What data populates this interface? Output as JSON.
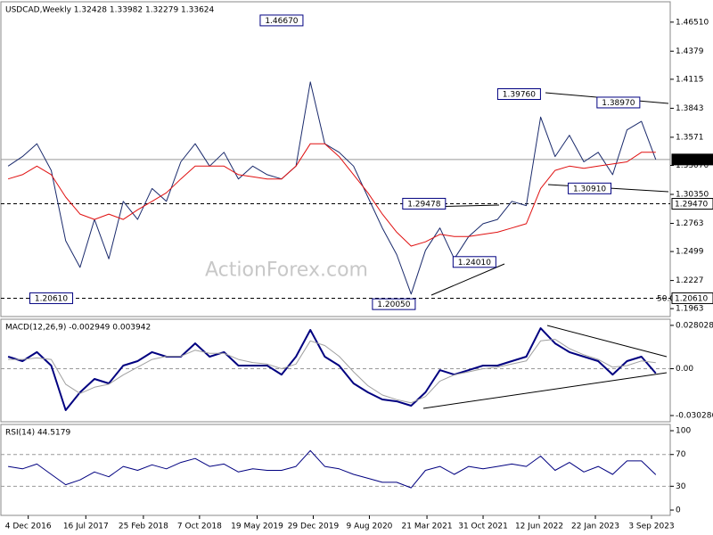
{
  "chart_data": [
    {
      "type": "line",
      "title": "USDCAD,Weekly  1.32428 1.33982 1.32279 1.33624",
      "watermark": "ActionForex.com",
      "fib_label": "50.0",
      "x": [
        0,
        1,
        2,
        3,
        4,
        5,
        6,
        7,
        8,
        9,
        10,
        11,
        12,
        13,
        14,
        15,
        16,
        17,
        18,
        19,
        20,
        21,
        22,
        23,
        24,
        25,
        26,
        27,
        28,
        29,
        30,
        31,
        32,
        33,
        34,
        35,
        36,
        37,
        38,
        39,
        40,
        41,
        42,
        43,
        44,
        45
      ],
      "xlim": [
        -0.5,
        46
      ],
      "ylim": [
        1.1889,
        1.4842
      ],
      "yticks": [
        {
          "value": 1.4651,
          "label": "1.46510"
        },
        1.4379,
        1.4115,
        1.3843,
        1.3571,
        {
          "value": 1.3307,
          "label": "1.33070"
        },
        {
          "value": 1.3035,
          "label": "1.30350"
        },
        1.2763,
        1.2499,
        1.2227,
        1.1963
      ],
      "hlines": [
        {
          "value": 1.33624,
          "label": "1.33624",
          "line": "solid",
          "fill": "#000000"
        },
        {
          "value": 1.2947,
          "label": "1.29470",
          "line": "dashed",
          "fill": "#ffffff"
        },
        {
          "value": 1.2061,
          "label": "1.20610",
          "line": "dashed",
          "fill": "#ffffff"
        }
      ],
      "annotations": [
        {
          "x": 19.0,
          "value": 1.4667,
          "label": "1.46670"
        },
        {
          "x": 35.5,
          "value": 1.3976,
          "label": "1.39760"
        },
        {
          "x": 42.4,
          "value": 1.3897,
          "label": "1.38970"
        },
        {
          "x": 40.4,
          "value": 1.3091,
          "label": "1.30910"
        },
        {
          "x": 28.9,
          "value": 1.29478,
          "label": "1.29478"
        },
        {
          "x": 32.4,
          "value": 1.2401,
          "label": "1.24010"
        },
        {
          "x": 3.0,
          "value": 1.2061,
          "label": "1.20610"
        },
        {
          "x": 26.8,
          "value": 1.2005,
          "label": "1.20050"
        }
      ],
      "series": [
        {
          "color": "#1a2a6c",
          "width": 1,
          "values": [
            1.33,
            1.339,
            1.351,
            1.326,
            1.26,
            1.235,
            1.28,
            1.243,
            1.297,
            1.28,
            1.309,
            1.297,
            1.334,
            1.351,
            1.33,
            1.343,
            1.318,
            1.33,
            1.322,
            1.318,
            1.33,
            1.409,
            1.351,
            1.343,
            1.33,
            1.301,
            1.272,
            1.247,
            1.21,
            1.251,
            1.272,
            1.243,
            1.264,
            1.276,
            1.28,
            1.297,
            1.293,
            1.376,
            1.339,
            1.359,
            1.334,
            1.343,
            1.322,
            1.364,
            1.372,
            1.33624
          ]
        },
        {
          "color": "#e01010",
          "width": 1,
          "values": [
            1.318,
            1.322,
            1.33,
            1.322,
            1.301,
            1.285,
            1.28,
            1.285,
            1.28,
            1.289,
            1.297,
            1.305,
            1.318,
            1.33,
            1.33,
            1.33,
            1.322,
            1.32,
            1.318,
            1.318,
            1.33,
            1.351,
            1.351,
            1.339,
            1.322,
            1.305,
            1.285,
            1.268,
            1.255,
            1.259,
            1.266,
            1.264,
            1.264,
            1.266,
            1.268,
            1.272,
            1.276,
            1.309,
            1.326,
            1.33,
            1.328,
            1.33,
            1.332,
            1.334,
            1.343,
            1.343
          ]
        }
      ]
    },
    {
      "type": "line",
      "title": "MACD(12,26,9) -0.002949 0.003942",
      "x": [
        0,
        1,
        2,
        3,
        4,
        5,
        6,
        7,
        8,
        9,
        10,
        11,
        12,
        13,
        14,
        15,
        16,
        17,
        18,
        19,
        20,
        21,
        22,
        23,
        24,
        25,
        26,
        27,
        28,
        29,
        30,
        31,
        32,
        33,
        34,
        35,
        36,
        37,
        38,
        39,
        40,
        41,
        42,
        43,
        44,
        45
      ],
      "xlim": [
        -0.5,
        46
      ],
      "ylim": [
        -0.0343,
        0.032
      ],
      "yticks": [
        0.028028,
        {
          "value": 0,
          "label": "0.00"
        },
        -0.030286
      ],
      "levels": [
        0
      ],
      "series": [
        {
          "color": "#000080",
          "width": 2,
          "values": [
            0.0078,
            0.0049,
            0.0107,
            0.002,
            -0.0268,
            -0.0153,
            -0.0066,
            -0.0095,
            0.002,
            0.0049,
            0.0107,
            0.0078,
            0.0078,
            0.0164,
            0.0078,
            0.0107,
            0.002,
            0.002,
            0.002,
            -0.0038,
            0.0078,
            0.0251,
            0.0078,
            0.002,
            -0.0095,
            -0.0153,
            -0.0199,
            -0.0211,
            -0.0239,
            -0.0153,
            -0.0009,
            -0.0038,
            -0.0009,
            0.002,
            0.002,
            0.0049,
            0.0078,
            0.0262,
            0.0164,
            0.0107,
            0.0078,
            0.0049,
            -0.0038,
            0.0049,
            0.0078,
            -0.002949
          ]
        },
        {
          "color": "#a0a0a0",
          "width": 1,
          "values": [
            0.006,
            0.006,
            0.007,
            0.006,
            -0.01,
            -0.016,
            -0.012,
            -0.01,
            -0.004,
            0.001,
            0.006,
            0.008,
            0.008,
            0.012,
            0.01,
            0.01,
            0.006,
            0.004,
            0.003,
            0.0,
            0.003,
            0.018,
            0.015,
            0.008,
            -0.002,
            -0.011,
            -0.017,
            -0.02,
            -0.022,
            -0.018,
            -0.008,
            -0.004,
            -0.002,
            0.0,
            0.001,
            0.003,
            0.005,
            0.018,
            0.019,
            0.013,
            0.009,
            0.006,
            0.001,
            0.002,
            0.005,
            0.003942
          ]
        }
      ]
    },
    {
      "type": "line",
      "title": "RSI(14) 44.5179",
      "x": [
        0,
        1,
        2,
        3,
        4,
        5,
        6,
        7,
        8,
        9,
        10,
        11,
        12,
        13,
        14,
        15,
        16,
        17,
        18,
        19,
        20,
        21,
        22,
        23,
        24,
        25,
        26,
        27,
        28,
        29,
        30,
        31,
        32,
        33,
        34,
        35,
        36,
        37,
        38,
        39,
        40,
        41,
        42,
        43,
        44,
        45
      ],
      "xlim": [
        -0.5,
        46
      ],
      "ylim": [
        -6.7,
        107.9
      ],
      "yticks": [
        100,
        70,
        30,
        0
      ],
      "levels": [
        70,
        30
      ],
      "xticks": [
        {
          "value": 1.4,
          "label": "4 Dec 2016"
        },
        {
          "value": 5.4,
          "label": "16 Jul 2017"
        },
        {
          "value": 9.4,
          "label": "25 Feb 2018"
        },
        {
          "value": 13.3,
          "label": "7 Oct 2018"
        },
        {
          "value": 17.3,
          "label": "19 May 2019"
        },
        {
          "value": 21.2,
          "label": "29 Dec 2019"
        },
        {
          "value": 25.1,
          "label": "9 Aug 2020"
        },
        {
          "value": 29.1,
          "label": "21 Mar 2021"
        },
        {
          "value": 33,
          "label": "31 Oct 2021"
        },
        {
          "value": 36.9,
          "label": "12 Jun 2022"
        },
        {
          "value": 40.8,
          "label": "22 Jan 2023"
        },
        {
          "value": 44.7,
          "label": "3 Sep 2023"
        }
      ],
      "series": [
        {
          "color": "#000080",
          "width": 1,
          "values": [
            55,
            52,
            58,
            45,
            32,
            38,
            48,
            42,
            55,
            50,
            57,
            52,
            60,
            65,
            55,
            58,
            48,
            52,
            50,
            50,
            55,
            75,
            55,
            52,
            45,
            40,
            35,
            35,
            28,
            50,
            55,
            45,
            55,
            52,
            55,
            58,
            55,
            68,
            50,
            60,
            48,
            55,
            45,
            62,
            62,
            44.5179
          ]
        }
      ]
    }
  ]
}
